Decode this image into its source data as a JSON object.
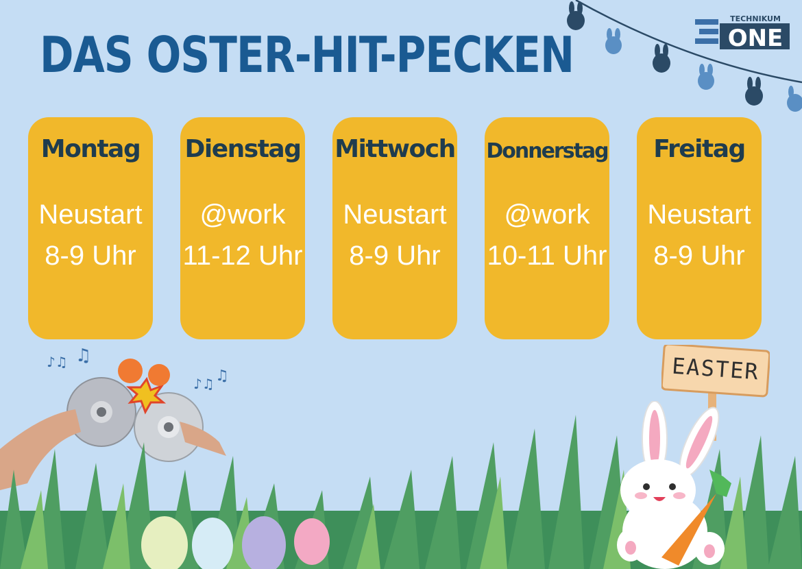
{
  "title": "DAS OSTER-HIT-PECKEN",
  "logo": {
    "top_text": "TECHNIKUM",
    "main_text": "ONE"
  },
  "days": [
    {
      "day": "Montag",
      "location": "Neustart",
      "time": "8-9 Uhr"
    },
    {
      "day": "Dienstag",
      "location": "@work",
      "time": "11-12 Uhr"
    },
    {
      "day": "Mittwoch",
      "location": "Neustart",
      "time": "8-9 Uhr"
    },
    {
      "day": "Donnerstag",
      "location": "@work",
      "time": "10-11 Uhr"
    },
    {
      "day": "Freitag",
      "location": "Neustart",
      "time": "8-9 Uhr"
    }
  ],
  "sign_text": "EASTER",
  "colors": {
    "background": "#c5ddf4",
    "card": "#f1b82b",
    "title": "#1a5a92",
    "day": "#1f3c4e"
  }
}
